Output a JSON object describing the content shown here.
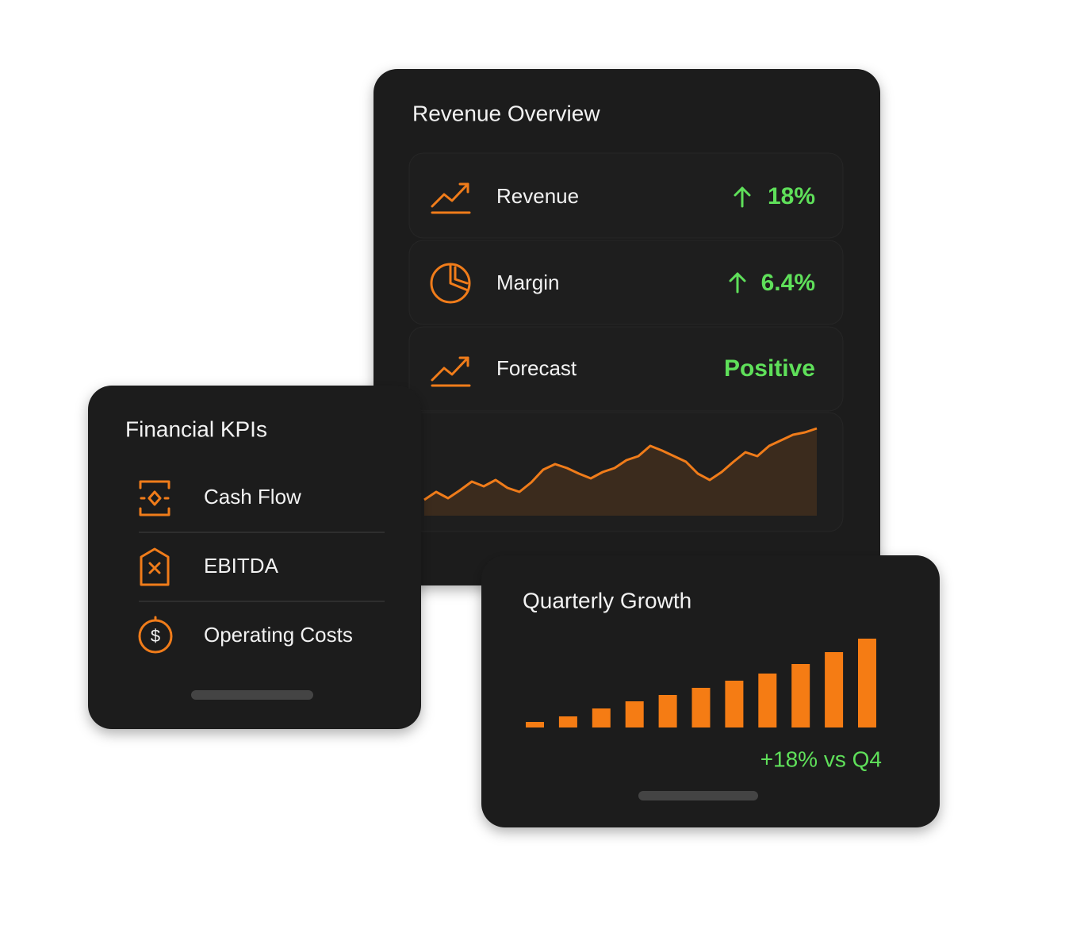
{
  "revenue_overview": {
    "title": "Revenue Overview",
    "items": [
      {
        "label": "Revenue",
        "value": "18%"
      },
      {
        "label": "Margin",
        "value": "6.4%"
      },
      {
        "label": "Forecast",
        "value": "Positive"
      }
    ],
    "chart": {
      "type": "line",
      "color": "#f07c1a",
      "values": [
        20,
        30,
        22,
        32,
        43,
        37,
        45,
        35,
        30,
        42,
        58,
        65,
        60,
        53,
        47,
        55,
        60,
        70,
        75,
        88,
        82,
        75,
        68,
        53,
        45,
        55,
        68,
        80,
        75,
        88,
        95,
        102,
        105,
        110
      ]
    }
  },
  "financial_kpis": {
    "title": "Financial KPIs",
    "items": [
      "Cash Flow",
      "EBITDA",
      "Operating Costs"
    ]
  },
  "quarterly_growth": {
    "title": "Quarterly Growth",
    "chart": {
      "type": "bar",
      "color": "#f57c14",
      "values": [
        7,
        14,
        24,
        33,
        41,
        50,
        59,
        68,
        80,
        95,
        112
      ]
    },
    "note": "+18% vs Q4"
  }
}
